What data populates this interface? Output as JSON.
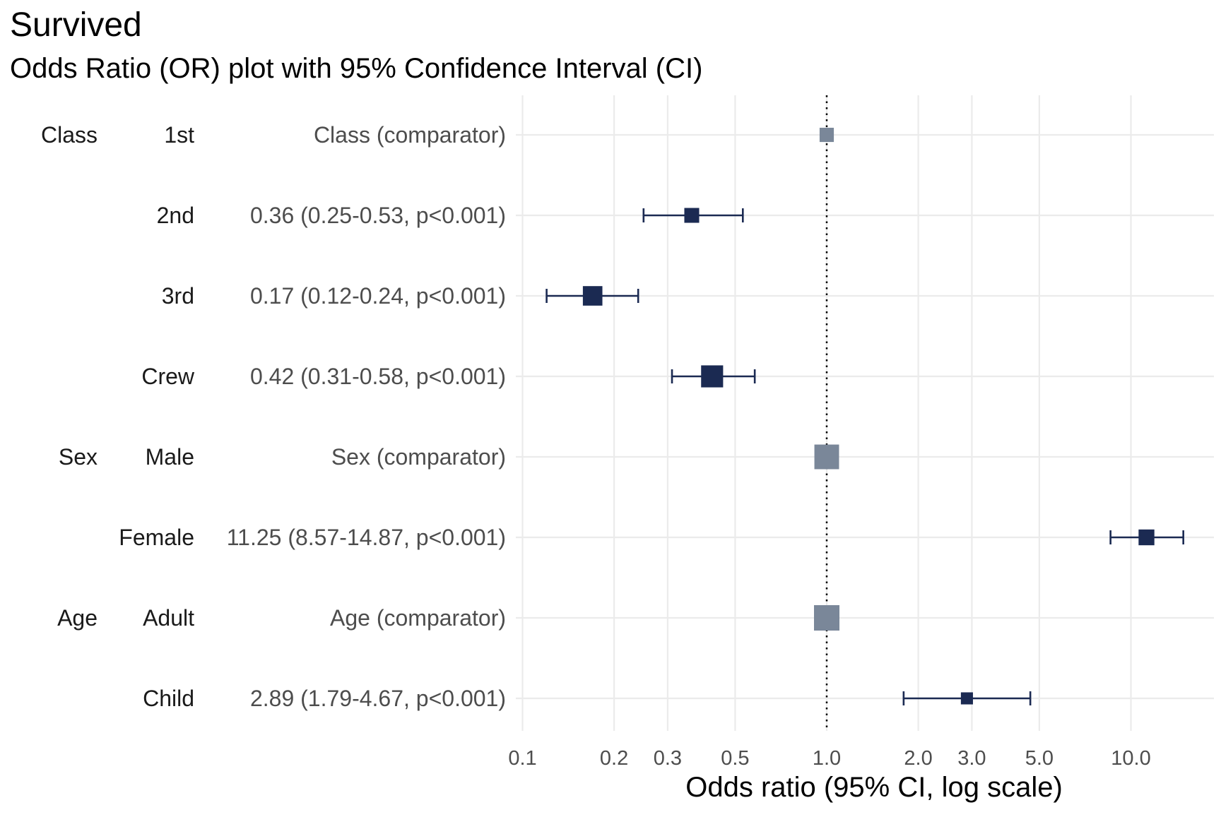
{
  "chart_data": {
    "type": "forest",
    "title": "Survived",
    "subtitle": "Odds Ratio (OR) plot with 95% Confidence Interval (CI)",
    "xlabel": "Odds ratio (95% CI, log scale)",
    "x_scale": "log",
    "xlim": [
      0.1,
      20
    ],
    "x_ticks": [
      0.1,
      0.2,
      0.3,
      0.5,
      1.0,
      2.0,
      3.0,
      5.0,
      10.0
    ],
    "x_tick_labels": [
      "0.1",
      "0.2",
      "0.3",
      "0.5",
      "1.0",
      "2.0",
      "3.0",
      "5.0",
      "10.0"
    ],
    "reference_line": 1.0,
    "grid": true,
    "colors": {
      "estimate": "#1b2a52",
      "comparator": "#7a8799",
      "grid": "#ebebeb"
    },
    "rows": [
      {
        "variable": "Class",
        "level": "1st",
        "label": "Class (comparator)",
        "comparator": true,
        "or": 1.0,
        "weight": 0.28
      },
      {
        "variable": "",
        "level": "2nd",
        "label": "0.36 (0.25-0.53, p<0.001)",
        "comparator": false,
        "or": 0.36,
        "lower": 0.25,
        "upper": 0.53,
        "weight": 0.32
      },
      {
        "variable": "",
        "level": "3rd",
        "label": "0.17 (0.12-0.24, p<0.001)",
        "comparator": false,
        "or": 0.17,
        "lower": 0.12,
        "upper": 0.24,
        "weight": 0.62
      },
      {
        "variable": "",
        "level": "Crew",
        "label": "0.42 (0.31-0.58, p<0.001)",
        "comparator": false,
        "or": 0.42,
        "lower": 0.31,
        "upper": 0.58,
        "weight": 0.78
      },
      {
        "variable": "Sex",
        "level": "Male",
        "label": "Sex (comparator)",
        "comparator": true,
        "or": 1.0,
        "weight": 0.95
      },
      {
        "variable": "",
        "level": "Female",
        "label": "11.25 (8.57-14.87, p<0.001)",
        "comparator": false,
        "or": 11.25,
        "lower": 8.57,
        "upper": 14.87,
        "weight": 0.38
      },
      {
        "variable": "Age",
        "level": "Adult",
        "label": "Age (comparator)",
        "comparator": true,
        "or": 1.0,
        "weight": 1.0
      },
      {
        "variable": "",
        "level": "Child",
        "label": "2.89 (1.79-4.67, p<0.001)",
        "comparator": false,
        "or": 2.89,
        "lower": 1.79,
        "upper": 4.67,
        "weight": 0.14
      }
    ]
  }
}
